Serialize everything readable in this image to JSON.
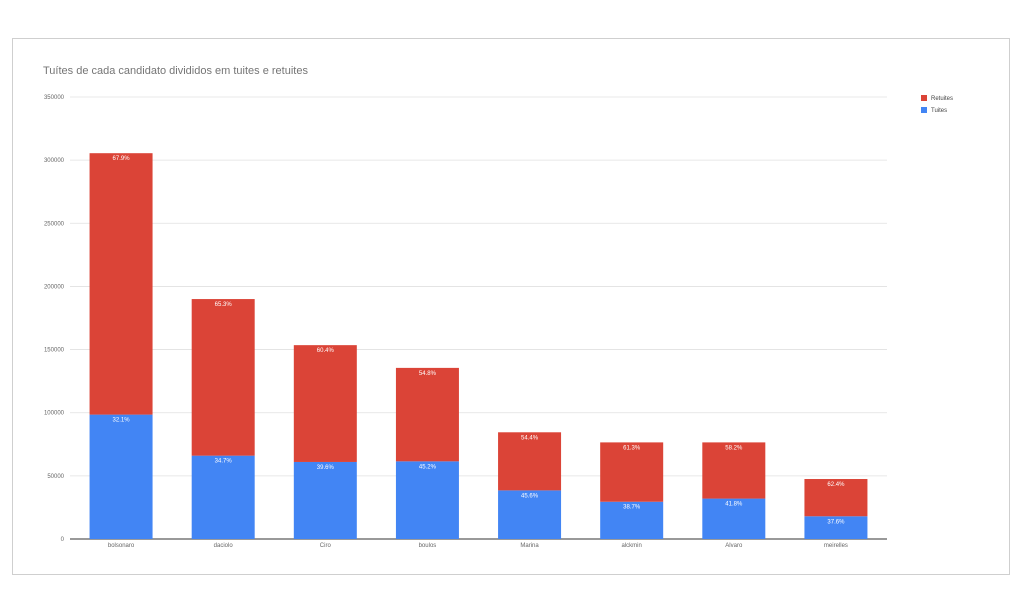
{
  "chart_data": {
    "type": "bar",
    "stacked": true,
    "title": "Tuítes de cada candidato divididos em tuites e retuites",
    "categories": [
      "bolsonaro",
      "daciolo",
      "Ciro",
      "boulos",
      "Marina",
      "alckmin",
      "Alvaro",
      "meirelles"
    ],
    "series": [
      {
        "name": "Tuites",
        "color": "#4285f4",
        "values": [
          98500,
          66000,
          61000,
          61500,
          38500,
          29500,
          32000,
          18000
        ],
        "labels": [
          "32.1%",
          "34.7%",
          "39.6%",
          "45.2%",
          "45.6%",
          "38.7%",
          "41.8%",
          "37.6%"
        ]
      },
      {
        "name": "Retuites",
        "color": "#db4437",
        "values": [
          207000,
          124000,
          92500,
          74000,
          46000,
          47000,
          44500,
          29500
        ],
        "labels": [
          "67.9%",
          "65.3%",
          "60.4%",
          "54.8%",
          "54.4%",
          "61.3%",
          "58.2%",
          "62.4%"
        ]
      }
    ],
    "ylim": [
      0,
      350000
    ],
    "yticks": [
      "0",
      "50000",
      "100000",
      "150000",
      "200000",
      "250000",
      "300000",
      "350000"
    ],
    "xlabel": "",
    "ylabel": "",
    "grid": true,
    "legend_position": "top-right"
  }
}
